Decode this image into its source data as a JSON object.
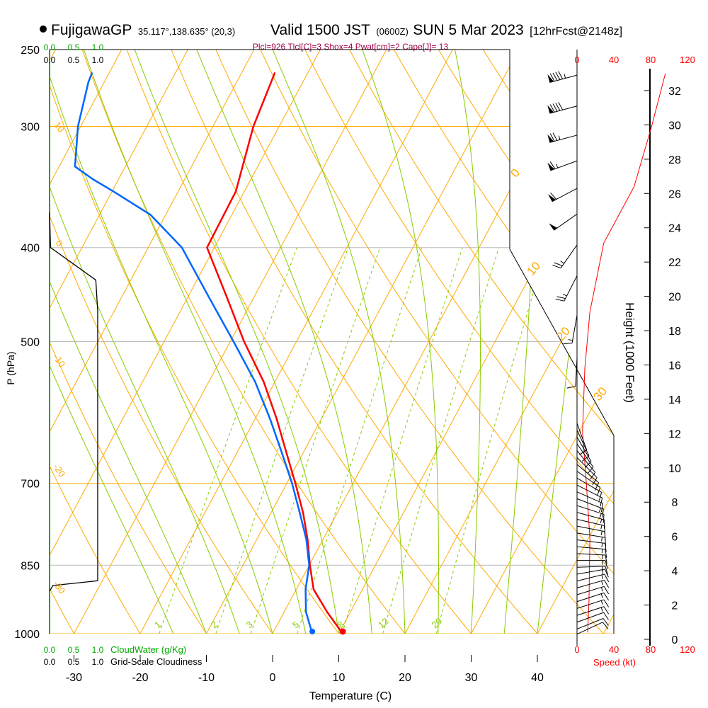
{
  "header": {
    "station": "FujigawaGP",
    "coords": "35.117°,138.635° (20,3)",
    "valid": "Valid 1500 JST",
    "utc": "(0600Z)",
    "date": "SUN 5 Mar 2023",
    "forecast": "[12hrFcst@2148z]",
    "indices": "Plcl=926 Tlcl[C]=3 Shox=4 Pwat[cm]=2 Cape[J]= 13"
  },
  "colors": {
    "temperature": "#ff0000",
    "dewpoint": "#0066ff",
    "isotherm": "#ffaa00",
    "moist": "#88cc00",
    "cloudwater": "#00aa00",
    "indices": "#a0004a",
    "speed": "#ff0000"
  },
  "chart_data": {
    "type": "line",
    "subtype": "skew-t log-p",
    "xlabel": "Temperature (C)",
    "ylabel": "P (hPa)",
    "x_ticks": [
      "-30",
      "-20",
      "-10",
      "0",
      "10",
      "20",
      "30",
      "40"
    ],
    "x_tick_values": [
      -30,
      -20,
      -10,
      0,
      10,
      20,
      30,
      40
    ],
    "y_ticks": [
      "250",
      "300",
      "400",
      "500",
      "700",
      "850",
      "1000"
    ],
    "y_tick_values": [
      250,
      300,
      400,
      500,
      700,
      850,
      1000
    ],
    "ylim": [
      1000,
      250
    ],
    "series": [
      {
        "name": "Temperature",
        "pressure": [
          1000,
          950,
          900,
          850,
          800,
          750,
          700,
          650,
          600,
          550,
          500,
          450,
          400,
          350,
          300,
          270,
          264
        ],
        "values": [
          10.6,
          6.5,
          2.6,
          0.1,
          -2.3,
          -5.2,
          -8.7,
          -12.6,
          -16.8,
          -21.7,
          -27.9,
          -34.1,
          -41.1,
          -41.3,
          -43.9,
          -44.8,
          -45.0
        ]
      },
      {
        "name": "Dewpoint",
        "pressure": [
          1000,
          950,
          900,
          850,
          800,
          750,
          700,
          650,
          600,
          550,
          500,
          450,
          400,
          370,
          350,
          340,
          330,
          300,
          270,
          264
        ],
        "values": [
          6.0,
          3.3,
          1.4,
          0.0,
          -2.5,
          -5.7,
          -9.2,
          -13.3,
          -17.8,
          -23.0,
          -29.5,
          -36.8,
          -44.9,
          -52.3,
          -59.8,
          -63.9,
          -67.6,
          -70.4,
          -72.4,
          -72.6
        ]
      }
    ],
    "surface": {
      "temperature": 10.6,
      "dewpoint": 6.0
    },
    "isotherm_labels": [
      "0",
      "10",
      "20",
      "30"
    ],
    "isotherm_label_values": [
      0,
      10,
      20,
      30
    ],
    "theta_labels": [
      "10",
      "0",
      "-10",
      "-20",
      "-30"
    ],
    "theta_label_values": [
      10,
      0,
      -10,
      -20,
      -30
    ],
    "mixing_ratio_labels": [
      "1",
      "2",
      "3",
      "5",
      "8",
      "12",
      "20"
    ],
    "mixing_ratio_values": [
      1,
      2,
      3,
      5,
      8,
      12,
      20
    ],
    "cloudiness": {
      "label": "Grid-Scale Cloudiness",
      "ticks": [
        "0.0",
        "0.5",
        "1.0"
      ],
      "pressure": [
        368,
        400,
        432,
        465,
        882,
        892,
        904
      ],
      "values": [
        0,
        0.02,
        0.96,
        1.0,
        1.0,
        0.07,
        0
      ]
    },
    "cloudwater": {
      "label": "CloudWater (g/Kg)",
      "ticks": [
        "0.0",
        "0.5",
        "1.0"
      ]
    },
    "wind_speed_profile": {
      "xlabel": "Speed (kt)",
      "ylabel": "Height (1000 Feet)",
      "speed_ticks": [
        "0",
        "40",
        "80",
        "120"
      ],
      "speed_tick_values": [
        0,
        40,
        80,
        120
      ],
      "height_ticks": [
        "0",
        "2",
        "4",
        "6",
        "8",
        "10",
        "12",
        "14",
        "16",
        "18",
        "20",
        "22",
        "24",
        "26",
        "28",
        "30",
        "32"
      ],
      "height_tick_values": [
        0,
        2,
        4,
        6,
        8,
        10,
        12,
        14,
        16,
        18,
        20,
        22,
        24,
        26,
        28,
        30,
        32
      ],
      "height_kft": [
        0.4,
        2.2,
        5.9,
        9.2,
        12.1,
        15.8,
        19.1,
        23.1,
        26.4,
        29.9,
        33.0
      ],
      "speed_kt": [
        11.5,
        13,
        14,
        10,
        6,
        8.5,
        14,
        29,
        62,
        81,
        96
      ]
    },
    "wind_barbs": [
      {
        "h": 32.9,
        "dir": 255,
        "spd": 95
      },
      {
        "h": 31.1,
        "dir": 255,
        "spd": 90
      },
      {
        "h": 29.4,
        "dir": 255,
        "spd": 75
      },
      {
        "h": 27.9,
        "dir": 250,
        "spd": 65
      },
      {
        "h": 26.3,
        "dir": 242,
        "spd": 60
      },
      {
        "h": 24.8,
        "dir": 235,
        "spd": 50
      },
      {
        "h": 23.0,
        "dir": 215,
        "spd": 25
      },
      {
        "h": 21.2,
        "dir": 207,
        "spd": 25
      },
      {
        "h": 18.9,
        "dir": 190,
        "spd": 15
      },
      {
        "h": 16.4,
        "dir": 183,
        "spd": 10
      },
      {
        "h": 12.6,
        "dir": 160,
        "spd": 10
      },
      {
        "h": 12.2,
        "dir": 155,
        "spd": 10
      },
      {
        "h": 11.8,
        "dir": 150,
        "spd": 10
      },
      {
        "h": 11.4,
        "dir": 145,
        "spd": 10
      },
      {
        "h": 11.0,
        "dir": 140,
        "spd": 10
      },
      {
        "h": 10.6,
        "dir": 135,
        "spd": 10
      },
      {
        "h": 10.2,
        "dir": 130,
        "spd": 10
      },
      {
        "h": 9.8,
        "dir": 125,
        "spd": 10
      },
      {
        "h": 9.4,
        "dir": 120,
        "spd": 10
      },
      {
        "h": 9.0,
        "dir": 117,
        "spd": 10
      },
      {
        "h": 8.6,
        "dir": 114,
        "spd": 10
      },
      {
        "h": 8.2,
        "dir": 111,
        "spd": 15
      },
      {
        "h": 7.8,
        "dir": 108,
        "spd": 15
      },
      {
        "h": 7.4,
        "dir": 105,
        "spd": 15
      },
      {
        "h": 7.0,
        "dir": 103,
        "spd": 15
      },
      {
        "h": 6.6,
        "dir": 101,
        "spd": 15
      },
      {
        "h": 6.2,
        "dir": 99,
        "spd": 15
      },
      {
        "h": 5.8,
        "dir": 97,
        "spd": 15
      },
      {
        "h": 5.4,
        "dir": 95,
        "spd": 15
      },
      {
        "h": 5.0,
        "dir": 93,
        "spd": 15
      },
      {
        "h": 4.6,
        "dir": 90,
        "spd": 15
      },
      {
        "h": 4.2,
        "dir": 88,
        "spd": 15
      },
      {
        "h": 3.8,
        "dir": 80,
        "spd": 15
      },
      {
        "h": 3.4,
        "dir": 76,
        "spd": 15
      },
      {
        "h": 3.0,
        "dir": 74,
        "spd": 15
      },
      {
        "h": 2.6,
        "dir": 73,
        "spd": 15
      },
      {
        "h": 2.2,
        "dir": 72,
        "spd": 15
      },
      {
        "h": 1.8,
        "dir": 72,
        "spd": 15
      },
      {
        "h": 1.4,
        "dir": 72,
        "spd": 15
      },
      {
        "h": 1.0,
        "dir": 70,
        "spd": 10
      },
      {
        "h": 0.6,
        "dir": 68,
        "spd": 10
      },
      {
        "h": 0.3,
        "dir": 65,
        "spd": 10
      }
    ]
  }
}
